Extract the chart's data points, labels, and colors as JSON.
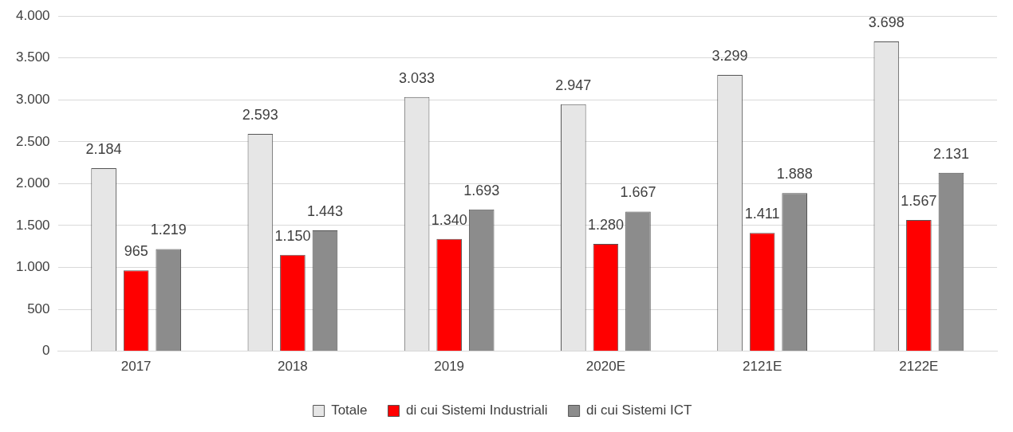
{
  "chart_data": {
    "type": "bar",
    "categories": [
      "2017",
      "2018",
      "2019",
      "2020E",
      "2121E",
      "2122E"
    ],
    "series": [
      {
        "name": "Totale",
        "color": "#e6e6e6",
        "values": [
          2184,
          2593,
          3033,
          2947,
          3299,
          3698
        ],
        "value_labels": [
          "2.184",
          "2.593",
          "3.033",
          "2.947",
          "3.299",
          "3.698"
        ]
      },
      {
        "name": "di cui Sistemi Industriali",
        "color": "#ff0000",
        "values": [
          965,
          1150,
          1340,
          1280,
          1411,
          1567
        ],
        "value_labels": [
          "965",
          "1.150",
          "1.340",
          "1.280",
          "1.411",
          "1.567"
        ]
      },
      {
        "name": "di cui Sistemi ICT",
        "color": "#8c8c8c",
        "values": [
          1219,
          1443,
          1693,
          1667,
          1888,
          2131
        ],
        "value_labels": [
          "1.219",
          "1.443",
          "1.693",
          "1.667",
          "1.888",
          "2.131"
        ]
      }
    ],
    "ylim": [
      0,
      4000
    ],
    "yticks": [
      {
        "value": 0,
        "label": "0"
      },
      {
        "value": 500,
        "label": "500"
      },
      {
        "value": 1000,
        "label": "1.000"
      },
      {
        "value": 1500,
        "label": "1.500"
      },
      {
        "value": 2000,
        "label": "2.000"
      },
      {
        "value": 2500,
        "label": "2.500"
      },
      {
        "value": 3000,
        "label": "3.000"
      },
      {
        "value": 3500,
        "label": "3.500"
      },
      {
        "value": 4000,
        "label": "4.000"
      }
    ],
    "grid": "y",
    "legend": "bottom"
  }
}
